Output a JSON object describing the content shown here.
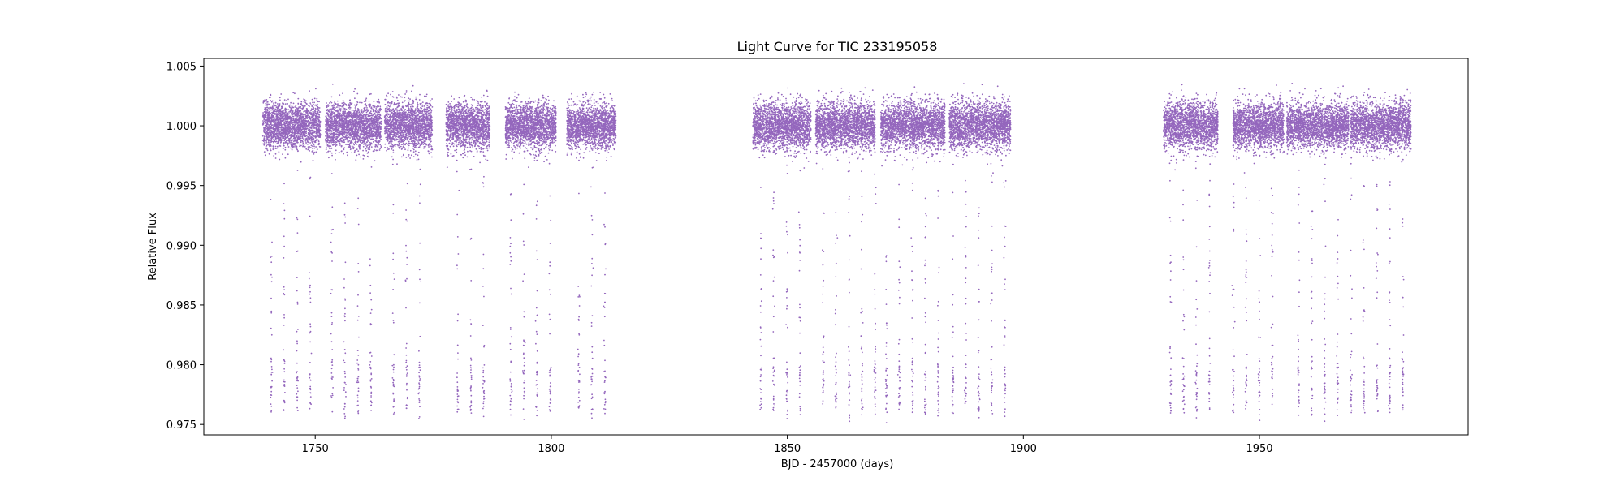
{
  "chart_data": {
    "type": "scatter",
    "title": "Light Curve for TIC 233195058",
    "xlabel": "BJD - 2457000 (days)",
    "ylabel": "Relative Flux",
    "xlim": [
      1726.4,
      1994.2
    ],
    "ylim": [
      0.97413,
      1.00564
    ],
    "xticks": [
      1750,
      1800,
      1850,
      1900,
      1950
    ],
    "xtick_labels": [
      "1750",
      "1800",
      "1850",
      "1900",
      "1950"
    ],
    "yticks": [
      0.975,
      0.98,
      0.985,
      0.99,
      0.995,
      1.0,
      1.005
    ],
    "ytick_labels": [
      "0.975",
      "0.980",
      "0.985",
      "0.990",
      "0.995",
      "1.000",
      "1.005"
    ],
    "grid": false,
    "series": [
      {
        "color": "#9467bd",
        "baseline_flux": 1.0,
        "scatter_amplitude": 0.0023,
        "eclipse_depth_flux": 0.976,
        "eclipse_period_days": 2.75,
        "data_segments_days": [
          [
            1738.9,
            1751.1
          ],
          [
            1752.2,
            1764.0
          ],
          [
            1764.7,
            1774.8
          ],
          [
            1777.7,
            1787.0
          ],
          [
            1790.3,
            1801.0
          ],
          [
            1803.3,
            1813.7
          ],
          [
            1842.7,
            1855.0
          ],
          [
            1856.0,
            1868.6
          ],
          [
            1869.8,
            1883.4
          ],
          [
            1884.3,
            1897.3
          ],
          [
            1929.7,
            1941.2
          ],
          [
            1944.4,
            1955.2
          ],
          [
            1955.8,
            1968.9
          ],
          [
            1969.3,
            1982.1
          ]
        ]
      }
    ]
  }
}
